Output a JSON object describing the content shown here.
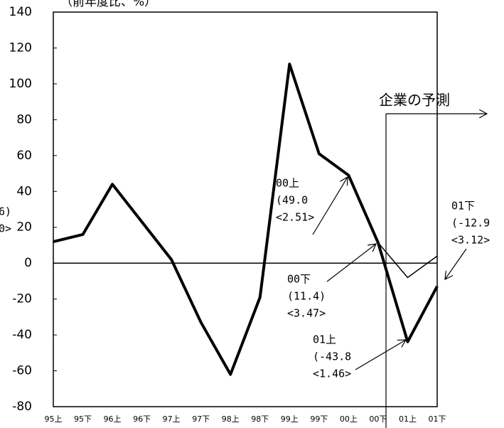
{
  "chart_data": {
    "type": "line",
    "title": "（前年度比、%）",
    "categories": [
      "95上",
      "95下",
      "96上",
      "96下",
      "97上",
      "97下",
      "98上",
      "98下",
      "99上",
      "99下",
      "00上",
      "00下",
      "01上",
      "01下"
    ],
    "series": [
      {
        "color": "#000000",
        "width": 4,
        "values": [
          12,
          16,
          44,
          23,
          2,
          -33,
          -62,
          -19,
          111,
          61,
          49,
          11.4,
          -43.8,
          -12.9
        ]
      },
      {
        "color": "#000000",
        "width": 1.5,
        "values": [
          null,
          null,
          null,
          null,
          null,
          null,
          null,
          null,
          null,
          null,
          null,
          11.4,
          -8,
          4
        ]
      }
    ],
    "ylim": [
      -80,
      140
    ],
    "yticks": [
      -80,
      -60,
      -40,
      -20,
      0,
      20,
      40,
      60,
      80,
      100,
      120,
      140
    ],
    "forecast_label": "企業の予測",
    "annotations": [
      {
        "lines": [
          "00上",
          "(49.0",
          "<2.51>"
        ]
      },
      {
        "lines": [
          "00下",
          "(11.4)",
          "<3.47>"
        ]
      },
      {
        "lines": [
          "01上",
          "(-43.8",
          "<1.46>"
        ]
      },
      {
        "lines": [
          "01下",
          "(-12.9",
          "<3.12>"
        ]
      },
      {
        "lines": [
          "6)",
          "0>"
        ]
      }
    ]
  }
}
